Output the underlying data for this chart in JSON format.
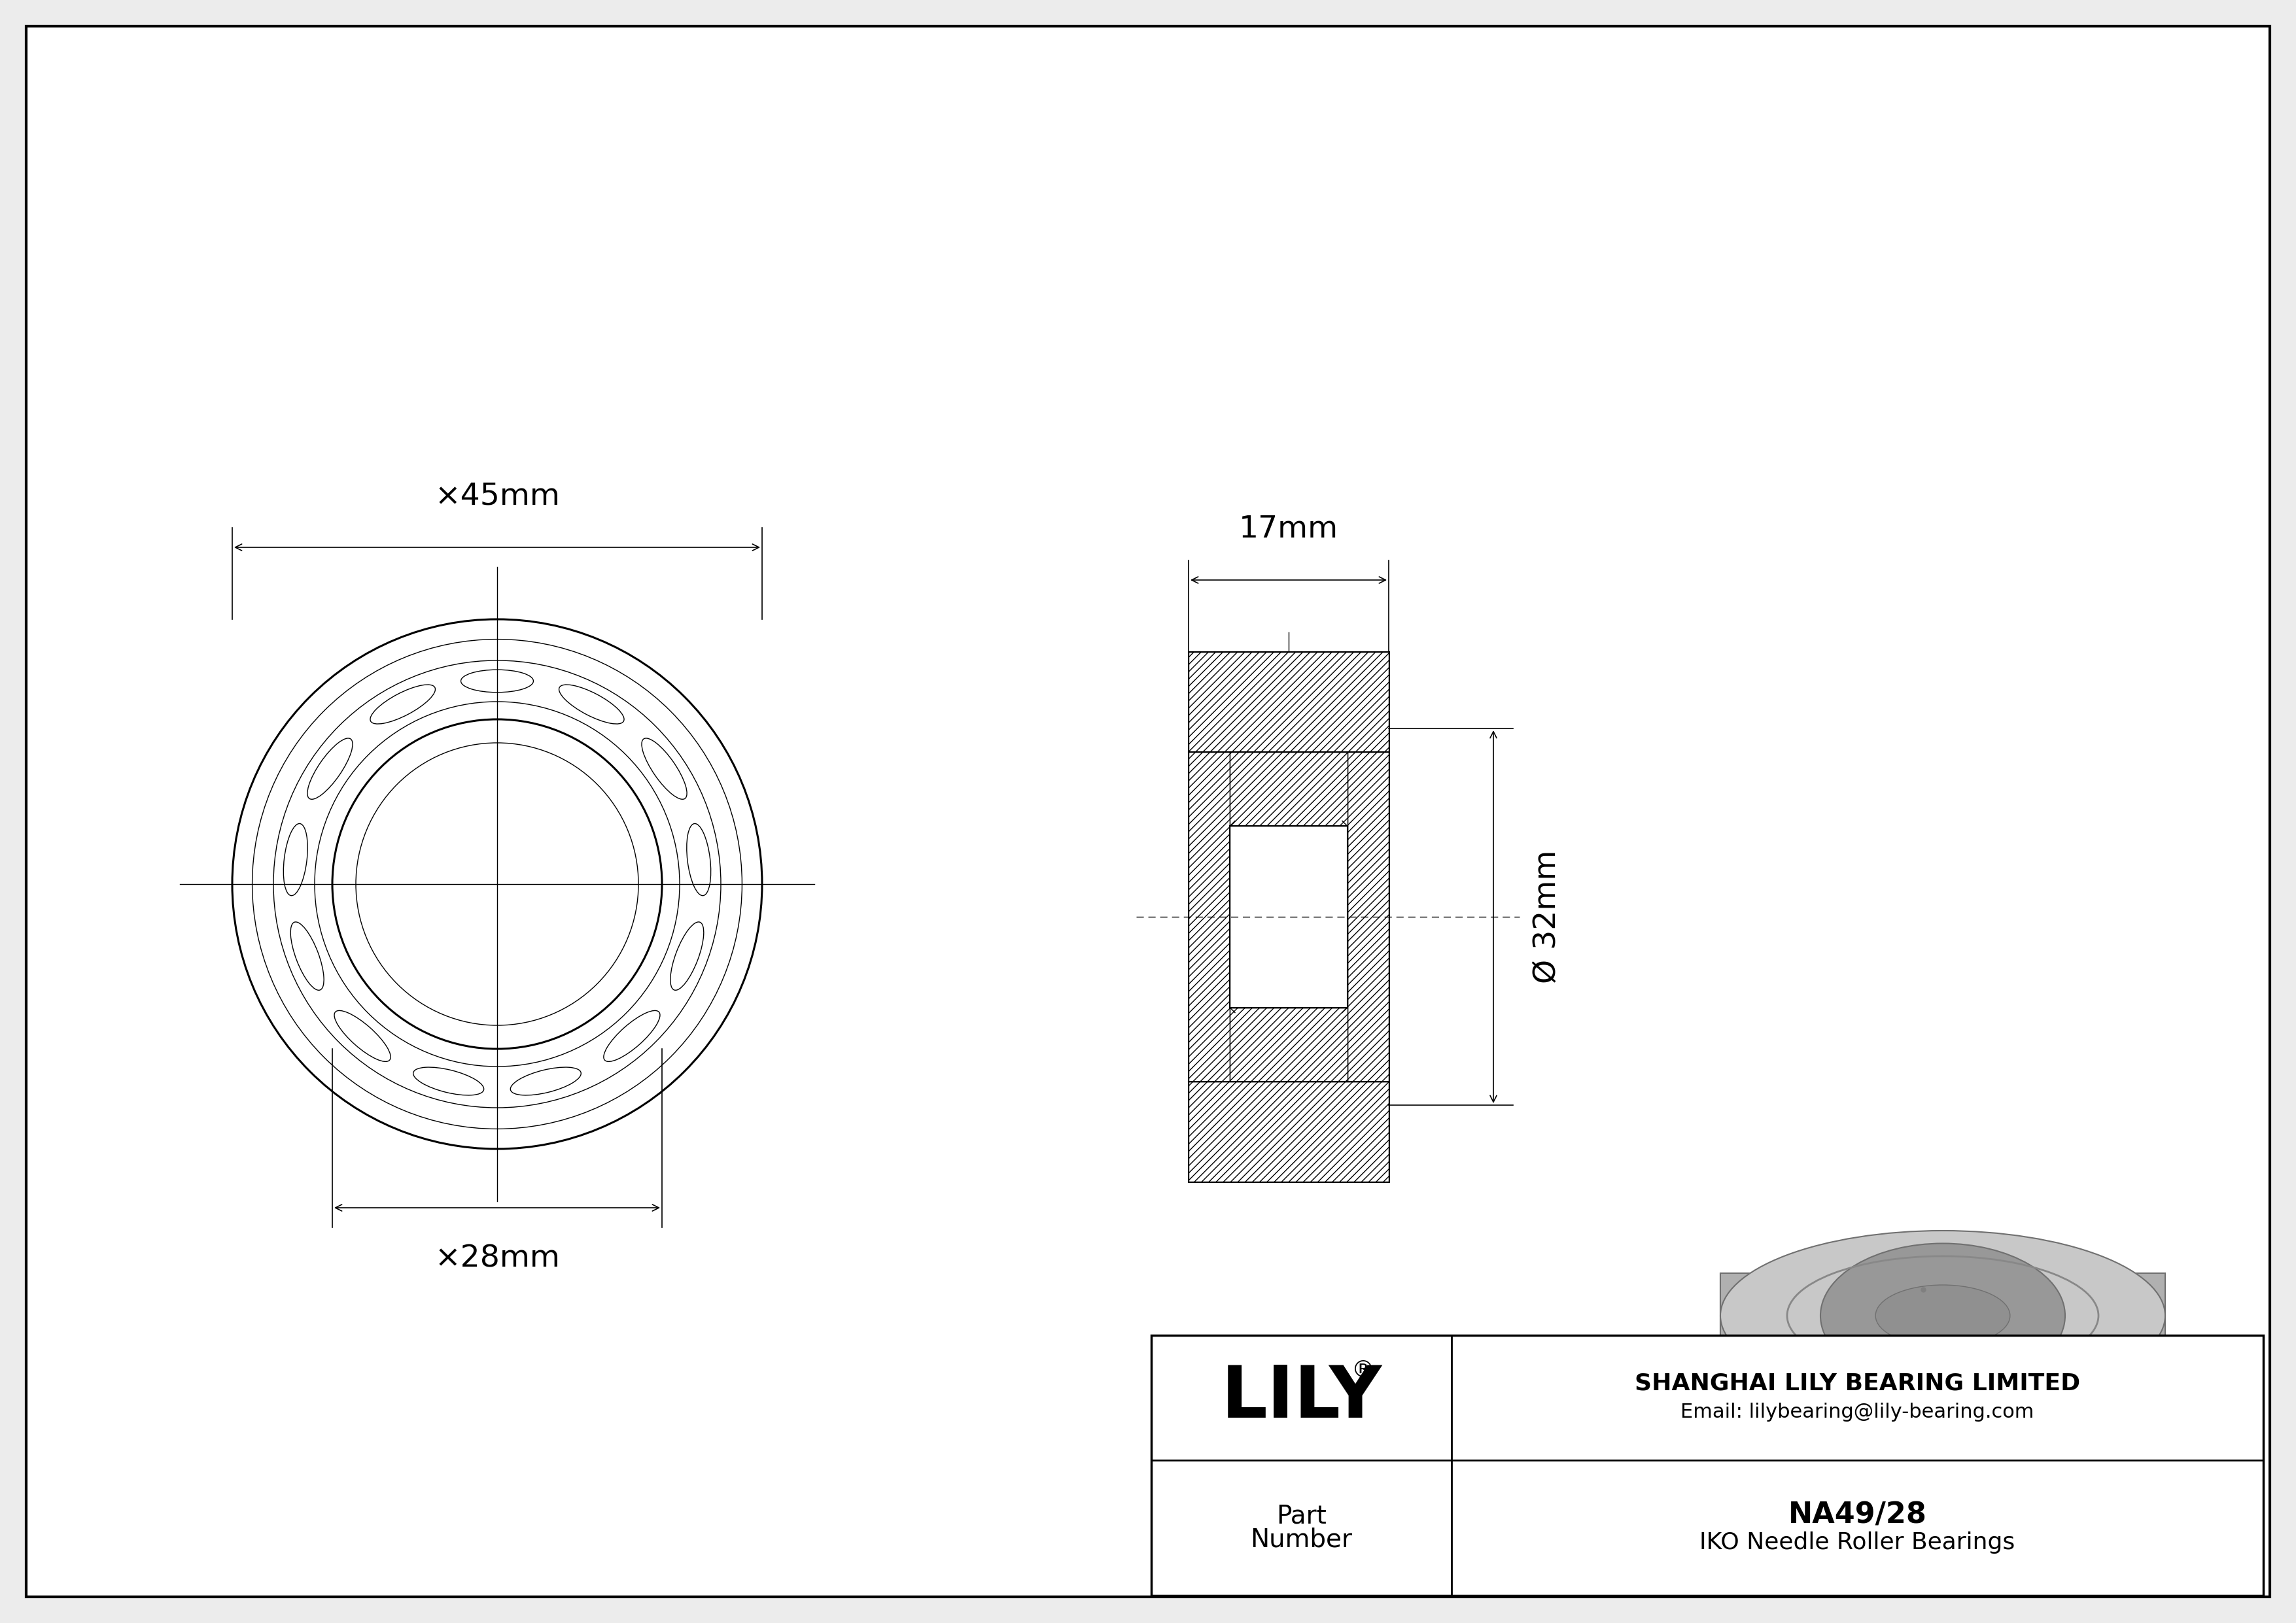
{
  "bg_color": "#ececec",
  "drawing_bg": "#ffffff",
  "line_color": "#000000",
  "company": "SHANGHAI LILY BEARING LIMITED",
  "email": "Email: lilybearing@lily-bearing.com",
  "part_number": "NA49/28",
  "bearing_type": "IKO Needle Roller Bearings",
  "dim_od": "×45mm",
  "dim_id": "×28mm",
  "dim_width": "17mm",
  "dim_bore": "Ø 32mm",
  "lily_logo": "LILY",
  "part_label_1": "Part",
  "part_label_2": "Number"
}
